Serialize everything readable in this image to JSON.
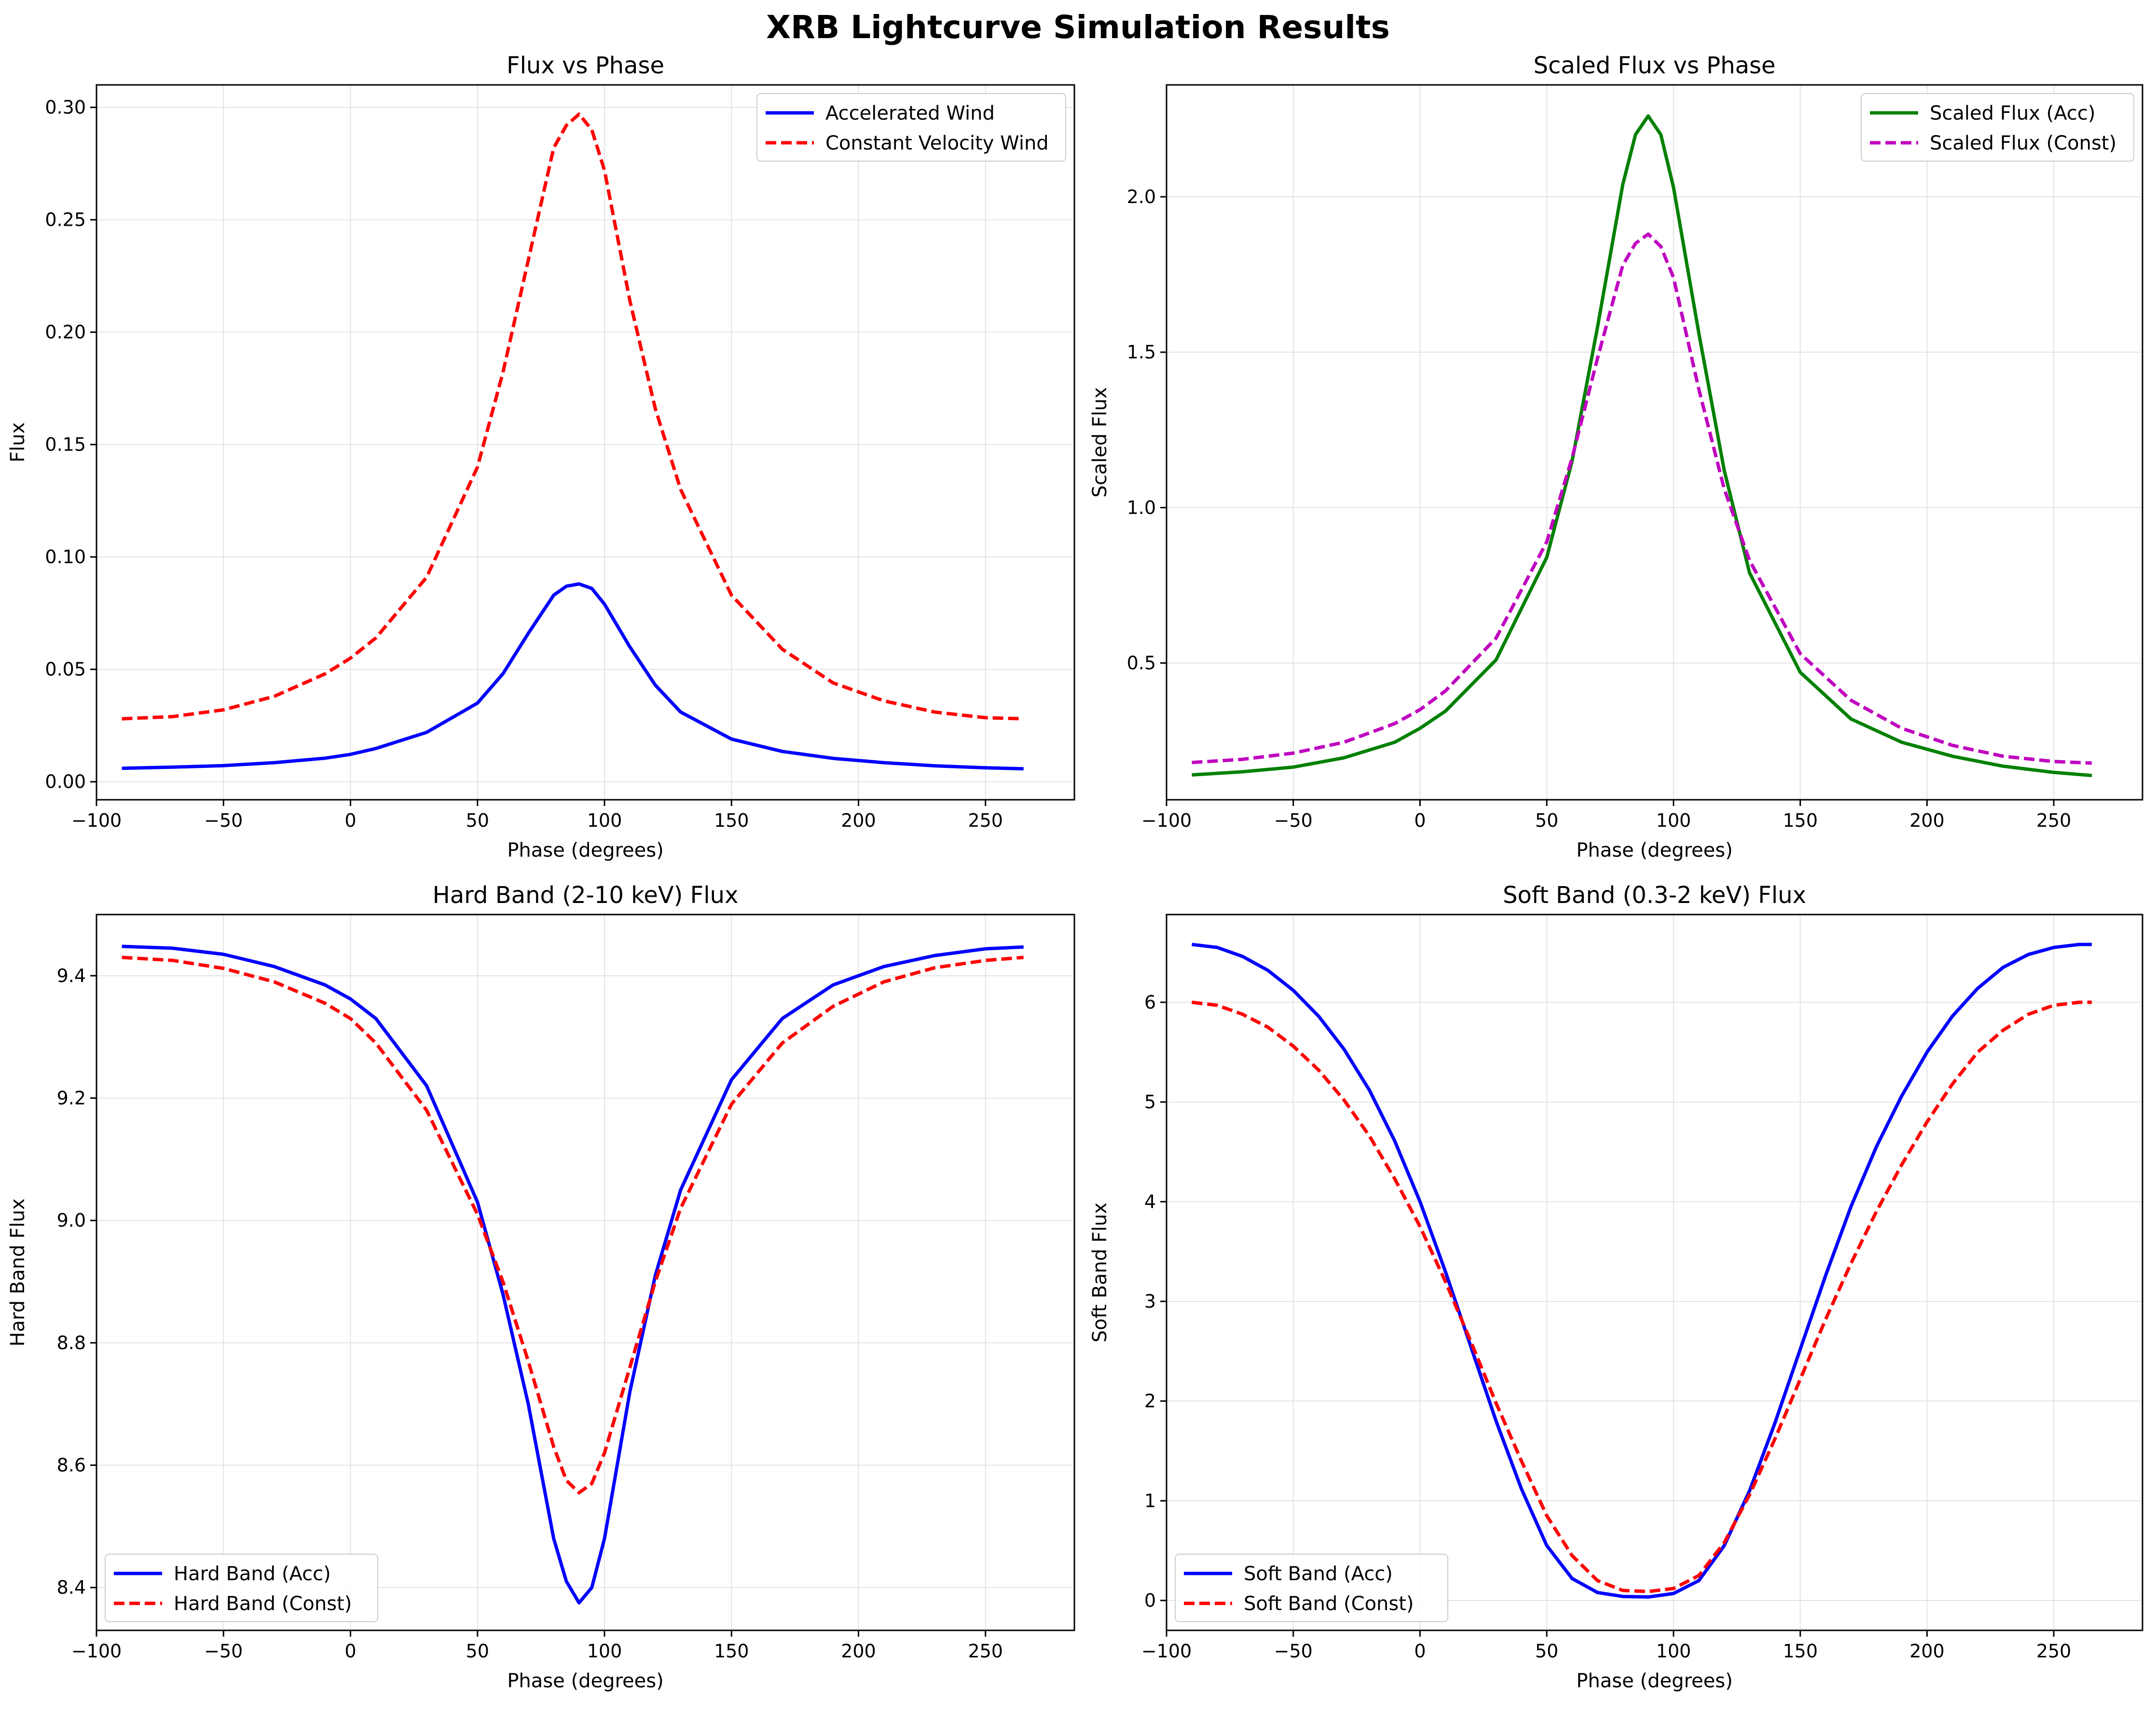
{
  "figure": {
    "title": "XRB Lightcurve Simulation Results"
  },
  "chart_data": [
    {
      "type": "line",
      "title": "Flux vs Phase",
      "xlabel": "Phase (degrees)",
      "ylabel": "Flux",
      "xlim": [
        -100,
        285
      ],
      "ylim": [
        -0.008,
        0.31
      ],
      "xticks": [
        -100,
        -50,
        0,
        50,
        100,
        150,
        200,
        250
      ],
      "xtick_labels": [
        "−100",
        "−50",
        "0",
        "50",
        "100",
        "150",
        "200",
        "250"
      ],
      "yticks": [
        0.0,
        0.05,
        0.1,
        0.15,
        0.2,
        0.25,
        0.3
      ],
      "ytick_labels": [
        "0.00",
        "0.05",
        "0.10",
        "0.15",
        "0.20",
        "0.25",
        "0.30"
      ],
      "grid": true,
      "legend_position": "top-right",
      "x": [
        -90,
        -70,
        -50,
        -30,
        -10,
        0,
        10,
        30,
        50,
        60,
        70,
        80,
        85,
        90,
        95,
        100,
        110,
        120,
        130,
        150,
        170,
        190,
        210,
        230,
        250,
        265
      ],
      "series": [
        {
          "name": "Accelerated Wind",
          "color": "#0000ff",
          "style": "solid",
          "values": [
            0.006,
            0.0065,
            0.0072,
            0.0085,
            0.0105,
            0.0122,
            0.0148,
            0.022,
            0.035,
            0.048,
            0.066,
            0.083,
            0.087,
            0.088,
            0.086,
            0.079,
            0.06,
            0.043,
            0.031,
            0.019,
            0.0135,
            0.0104,
            0.0085,
            0.0071,
            0.0062,
            0.0058
          ]
        },
        {
          "name": "Constant Velocity Wind",
          "color": "#ff0000",
          "style": "dashed",
          "values": [
            0.028,
            0.029,
            0.032,
            0.038,
            0.048,
            0.055,
            0.064,
            0.091,
            0.14,
            0.182,
            0.232,
            0.282,
            0.292,
            0.297,
            0.29,
            0.272,
            0.214,
            0.166,
            0.13,
            0.083,
            0.059,
            0.044,
            0.036,
            0.031,
            0.0285,
            0.028
          ]
        }
      ]
    },
    {
      "type": "line",
      "title": "Scaled Flux vs Phase",
      "xlabel": "Phase (degrees)",
      "ylabel": "Scaled Flux",
      "xlim": [
        -100,
        285
      ],
      "ylim": [
        0.06,
        2.36
      ],
      "xticks": [
        -100,
        -50,
        0,
        50,
        100,
        150,
        200,
        250
      ],
      "xtick_labels": [
        "−100",
        "−50",
        "0",
        "50",
        "100",
        "150",
        "200",
        "250"
      ],
      "yticks": [
        0.5,
        1.0,
        1.5,
        2.0
      ],
      "ytick_labels": [
        "0.5",
        "1.0",
        "1.5",
        "2.0"
      ],
      "grid": true,
      "legend_position": "top-right",
      "x": [
        -90,
        -70,
        -50,
        -30,
        -10,
        0,
        10,
        30,
        50,
        60,
        70,
        80,
        85,
        90,
        95,
        100,
        110,
        120,
        130,
        150,
        170,
        190,
        210,
        230,
        250,
        265
      ],
      "series": [
        {
          "name": "Scaled Flux (Acc)",
          "color": "#008000",
          "style": "solid",
          "values": [
            0.14,
            0.15,
            0.165,
            0.195,
            0.245,
            0.29,
            0.345,
            0.51,
            0.84,
            1.15,
            1.58,
            2.04,
            2.2,
            2.26,
            2.2,
            2.03,
            1.56,
            1.12,
            0.79,
            0.47,
            0.32,
            0.245,
            0.2,
            0.168,
            0.148,
            0.138
          ]
        },
        {
          "name": "Scaled Flux (Const)",
          "color": "#bf00bf",
          "style": "dashed",
          "values": [
            0.18,
            0.19,
            0.21,
            0.245,
            0.305,
            0.35,
            0.41,
            0.58,
            0.89,
            1.16,
            1.48,
            1.78,
            1.85,
            1.88,
            1.84,
            1.74,
            1.38,
            1.06,
            0.83,
            0.53,
            0.38,
            0.29,
            0.235,
            0.2,
            0.183,
            0.178
          ]
        }
      ]
    },
    {
      "type": "line",
      "title": "Hard Band (2-10 keV) Flux",
      "xlabel": "Phase (degrees)",
      "ylabel": "Hard Band Flux",
      "xlim": [
        -100,
        285
      ],
      "ylim": [
        8.33,
        9.5
      ],
      "xticks": [
        -100,
        -50,
        0,
        50,
        100,
        150,
        200,
        250
      ],
      "xtick_labels": [
        "−100",
        "−50",
        "0",
        "50",
        "100",
        "150",
        "200",
        "250"
      ],
      "yticks": [
        8.4,
        8.6,
        8.8,
        9.0,
        9.2,
        9.4
      ],
      "ytick_labels": [
        "8.4",
        "8.6",
        "8.8",
        "9.0",
        "9.2",
        "9.4"
      ],
      "grid": true,
      "legend_position": "bottom-left",
      "x": [
        -90,
        -70,
        -50,
        -30,
        -10,
        0,
        10,
        30,
        50,
        60,
        70,
        80,
        85,
        90,
        95,
        100,
        110,
        120,
        130,
        150,
        170,
        190,
        210,
        230,
        250,
        265
      ],
      "series": [
        {
          "name": "Hard Band (Acc)",
          "color": "#0000ff",
          "style": "solid",
          "values": [
            9.448,
            9.445,
            9.435,
            9.415,
            9.385,
            9.362,
            9.33,
            9.22,
            9.03,
            8.88,
            8.7,
            8.48,
            8.41,
            8.375,
            8.4,
            8.48,
            8.72,
            8.91,
            9.05,
            9.23,
            9.33,
            9.385,
            9.415,
            9.433,
            9.444,
            9.447
          ]
        },
        {
          "name": "Hard Band (Const)",
          "color": "#ff0000",
          "style": "dashed",
          "values": [
            9.43,
            9.425,
            9.412,
            9.39,
            9.355,
            9.33,
            9.29,
            9.18,
            9.01,
            8.9,
            8.77,
            8.63,
            8.575,
            8.555,
            8.57,
            8.62,
            8.76,
            8.9,
            9.02,
            9.19,
            9.29,
            9.35,
            9.39,
            9.413,
            9.425,
            9.43
          ]
        }
      ]
    },
    {
      "type": "line",
      "title": "Soft Band (0.3-2 keV) Flux",
      "xlabel": "Phase (degrees)",
      "ylabel": "Soft Band Flux",
      "xlim": [
        -100,
        285
      ],
      "ylim": [
        -0.3,
        6.88
      ],
      "xticks": [
        -100,
        -50,
        0,
        50,
        100,
        150,
        200,
        250
      ],
      "xtick_labels": [
        "−100",
        "−50",
        "0",
        "50",
        "100",
        "150",
        "200",
        "250"
      ],
      "yticks": [
        0,
        1,
        2,
        3,
        4,
        5,
        6
      ],
      "ytick_labels": [
        "0",
        "1",
        "2",
        "3",
        "4",
        "5",
        "6"
      ],
      "grid": true,
      "legend_position": "bottom-left",
      "x": [
        -90,
        -80,
        -70,
        -60,
        -50,
        -40,
        -30,
        -20,
        -10,
        0,
        10,
        20,
        30,
        40,
        50,
        60,
        70,
        80,
        90,
        100,
        110,
        120,
        130,
        140,
        150,
        160,
        170,
        180,
        190,
        200,
        210,
        220,
        230,
        240,
        250,
        260,
        265
      ],
      "series": [
        {
          "name": "Soft Band (Acc)",
          "color": "#0000ff",
          "style": "solid",
          "values": [
            6.58,
            6.55,
            6.46,
            6.32,
            6.12,
            5.86,
            5.53,
            5.12,
            4.61,
            4.0,
            3.3,
            2.55,
            1.8,
            1.12,
            0.55,
            0.22,
            0.08,
            0.04,
            0.035,
            0.07,
            0.2,
            0.55,
            1.1,
            1.78,
            2.52,
            3.26,
            3.95,
            4.55,
            5.06,
            5.5,
            5.86,
            6.14,
            6.35,
            6.48,
            6.55,
            6.58,
            6.58
          ]
        },
        {
          "name": "Soft Band (Const)",
          "color": "#ff0000",
          "style": "dashed",
          "values": [
            6.0,
            5.97,
            5.88,
            5.75,
            5.56,
            5.32,
            5.02,
            4.66,
            4.23,
            3.75,
            3.2,
            2.6,
            1.98,
            1.4,
            0.85,
            0.45,
            0.2,
            0.1,
            0.09,
            0.12,
            0.25,
            0.58,
            1.06,
            1.62,
            2.22,
            2.82,
            3.38,
            3.9,
            4.37,
            4.8,
            5.18,
            5.5,
            5.72,
            5.88,
            5.97,
            6.0,
            6.0
          ]
        }
      ]
    }
  ]
}
